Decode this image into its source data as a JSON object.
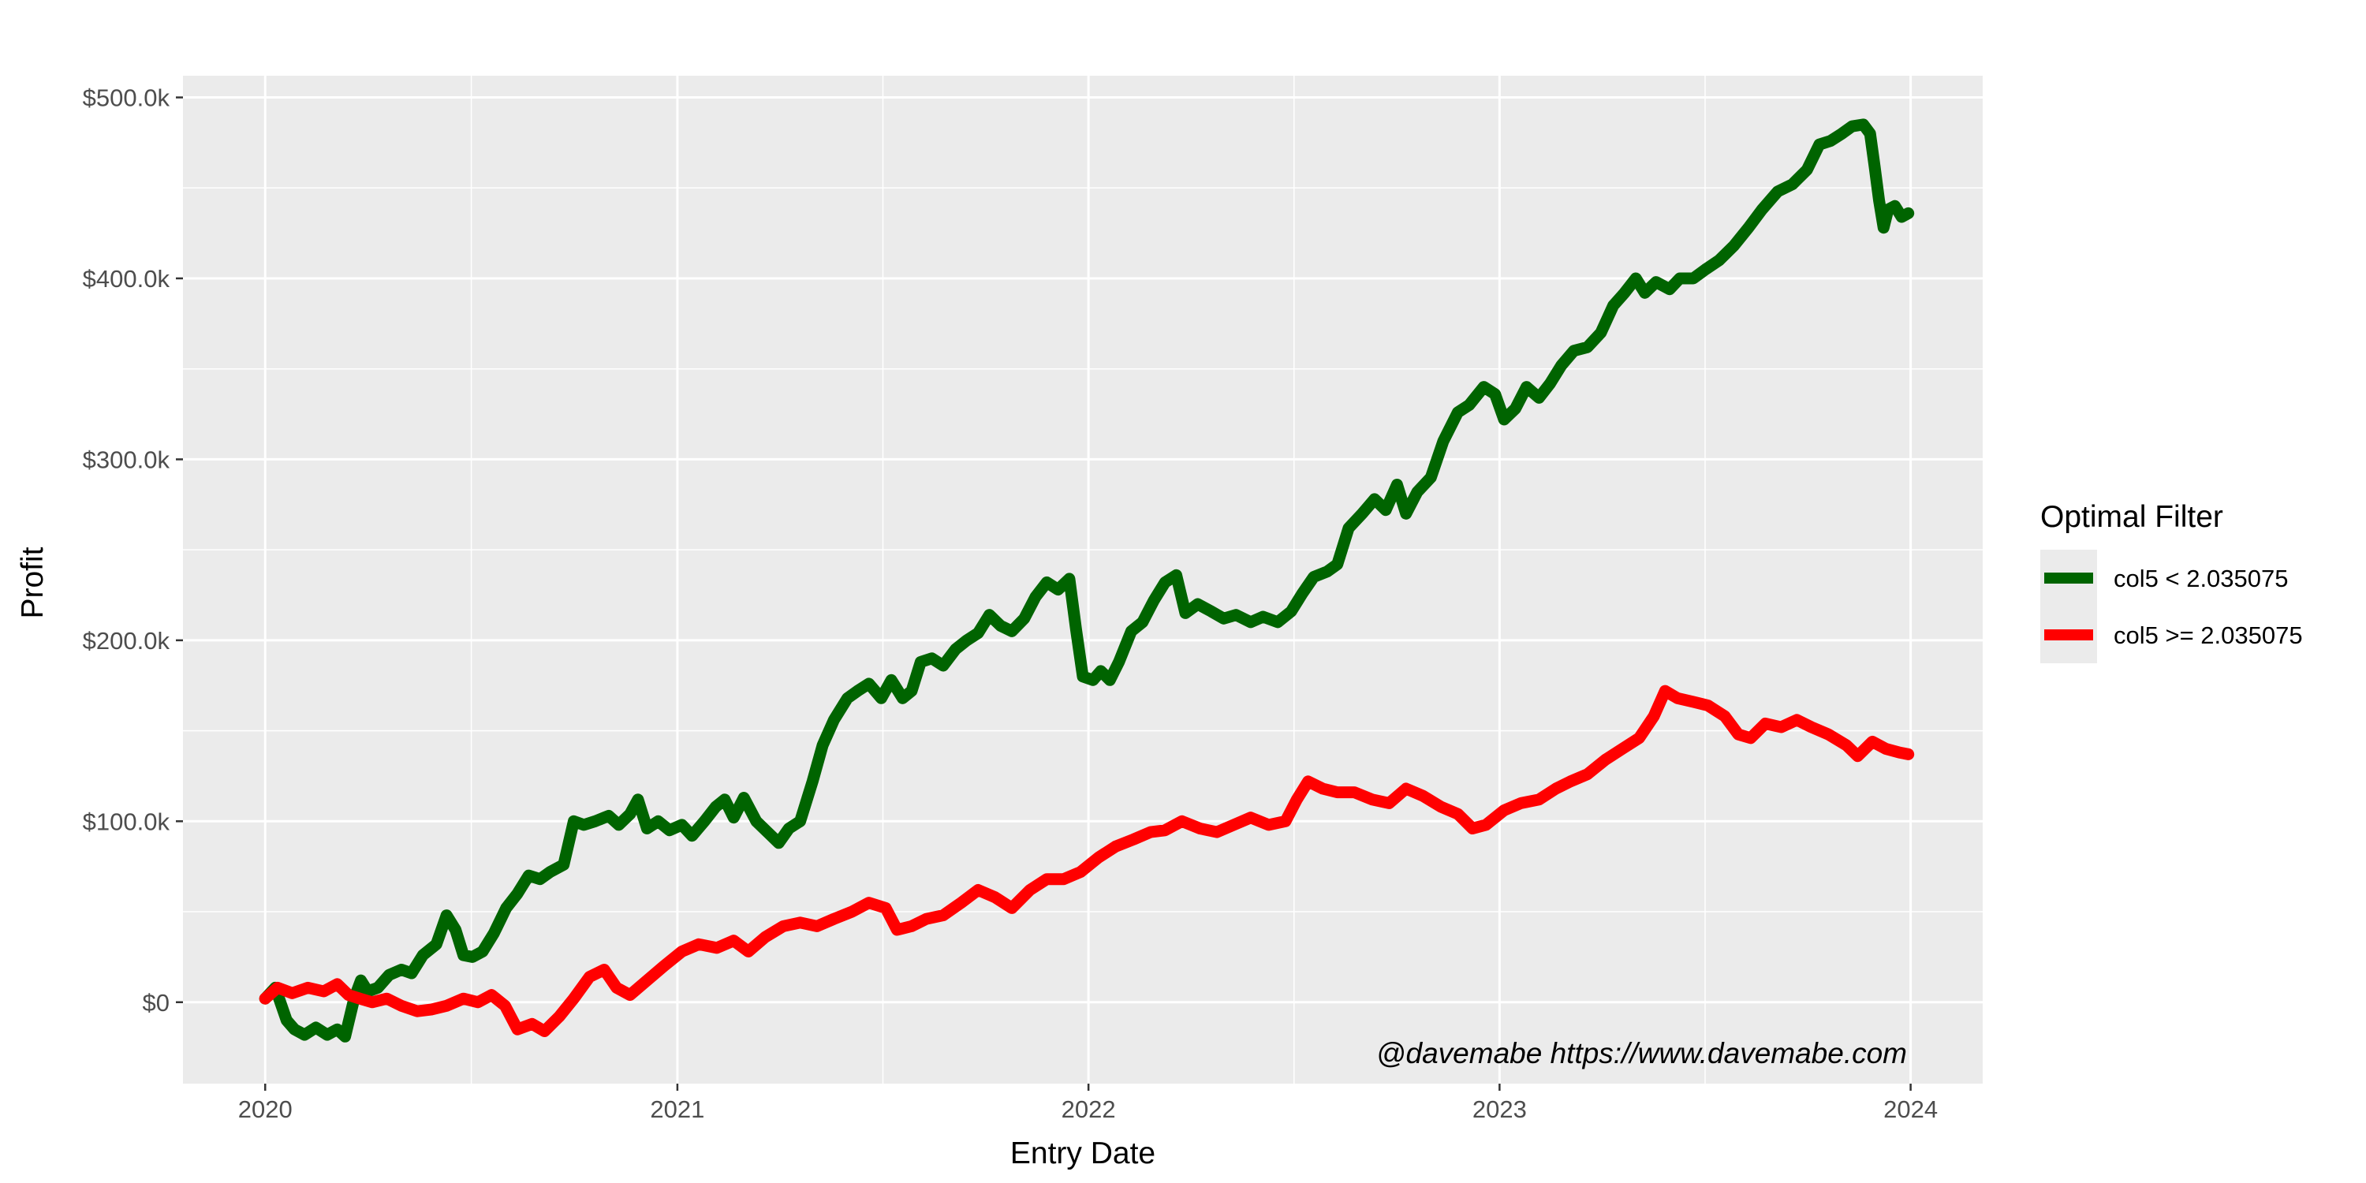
{
  "chart_data": {
    "type": "line",
    "xlabel": "Entry Date",
    "ylabel": "Profit",
    "xlim": [
      "2019-10-20",
      "2024-03-05"
    ],
    "ylim": [
      -45000,
      512000
    ],
    "x_ticks": [
      {
        "date": "2020-01-01",
        "label": "2020"
      },
      {
        "date": "2021-01-01",
        "label": "2021"
      },
      {
        "date": "2022-01-01",
        "label": "2022"
      },
      {
        "date": "2023-01-01",
        "label": "2023"
      },
      {
        "date": "2024-01-01",
        "label": "2024"
      }
    ],
    "y_ticks": [
      {
        "value": 0,
        "label": "$0"
      },
      {
        "value": 100000,
        "label": "$100.0k"
      },
      {
        "value": 200000,
        "label": "$200.0k"
      },
      {
        "value": 300000,
        "label": "$300.0k"
      },
      {
        "value": 400000,
        "label": "$400.0k"
      },
      {
        "value": 500000,
        "label": "$500.0k"
      }
    ],
    "grid": true,
    "legend": {
      "title": "Optimal Filter",
      "position": "right"
    },
    "annotation": "@davemabe https://www.davemabe.com",
    "series": [
      {
        "name": "col5 < 2.035075",
        "color": "#006400",
        "points": [
          [
            "2020-01-01",
            2000
          ],
          [
            "2020-01-10",
            8000
          ],
          [
            "2020-01-20",
            -10000
          ],
          [
            "2020-01-27",
            -15000
          ],
          [
            "2020-02-05",
            -18000
          ],
          [
            "2020-02-15",
            -14000
          ],
          [
            "2020-02-25",
            -18000
          ],
          [
            "2020-03-05",
            -15000
          ],
          [
            "2020-03-12",
            -19000
          ],
          [
            "2020-03-20",
            2000
          ],
          [
            "2020-03-26",
            12000
          ],
          [
            "2020-04-01",
            6000
          ],
          [
            "2020-04-10",
            8000
          ],
          [
            "2020-04-20",
            15000
          ],
          [
            "2020-05-01",
            18000
          ],
          [
            "2020-05-10",
            16000
          ],
          [
            "2020-05-20",
            26000
          ],
          [
            "2020-06-01",
            32000
          ],
          [
            "2020-06-10",
            48000
          ],
          [
            "2020-06-18",
            40000
          ],
          [
            "2020-06-25",
            26000
          ],
          [
            "2020-07-03",
            25000
          ],
          [
            "2020-07-12",
            28000
          ],
          [
            "2020-07-22",
            38000
          ],
          [
            "2020-08-02",
            52000
          ],
          [
            "2020-08-12",
            60000
          ],
          [
            "2020-08-22",
            70000
          ],
          [
            "2020-09-01",
            68000
          ],
          [
            "2020-09-10",
            72000
          ],
          [
            "2020-09-22",
            76000
          ],
          [
            "2020-10-01",
            100000
          ],
          [
            "2020-10-10",
            98000
          ],
          [
            "2020-10-20",
            100000
          ],
          [
            "2020-11-01",
            103000
          ],
          [
            "2020-11-10",
            98000
          ],
          [
            "2020-11-20",
            104000
          ],
          [
            "2020-11-27",
            112000
          ],
          [
            "2020-12-05",
            96000
          ],
          [
            "2020-12-15",
            100000
          ],
          [
            "2020-12-25",
            95000
          ],
          [
            "2021-01-05",
            98000
          ],
          [
            "2021-01-14",
            92000
          ],
          [
            "2021-01-25",
            100000
          ],
          [
            "2021-02-04",
            108000
          ],
          [
            "2021-02-12",
            112000
          ],
          [
            "2021-02-20",
            102000
          ],
          [
            "2021-03-01",
            113000
          ],
          [
            "2021-03-12",
            100000
          ],
          [
            "2021-03-22",
            94000
          ],
          [
            "2021-04-01",
            88000
          ],
          [
            "2021-04-10",
            96000
          ],
          [
            "2021-04-20",
            100000
          ],
          [
            "2021-05-01",
            122000
          ],
          [
            "2021-05-10",
            142000
          ],
          [
            "2021-05-20",
            156000
          ],
          [
            "2021-06-01",
            168000
          ],
          [
            "2021-06-10",
            172000
          ],
          [
            "2021-06-20",
            176000
          ],
          [
            "2021-07-01",
            168000
          ],
          [
            "2021-07-10",
            178000
          ],
          [
            "2021-07-20",
            168000
          ],
          [
            "2021-07-28",
            172000
          ],
          [
            "2021-08-05",
            188000
          ],
          [
            "2021-08-15",
            190000
          ],
          [
            "2021-08-25",
            186000
          ],
          [
            "2021-09-05",
            195000
          ],
          [
            "2021-09-15",
            200000
          ],
          [
            "2021-09-25",
            204000
          ],
          [
            "2021-10-05",
            214000
          ],
          [
            "2021-10-15",
            208000
          ],
          [
            "2021-10-25",
            205000
          ],
          [
            "2021-11-05",
            212000
          ],
          [
            "2021-11-15",
            224000
          ],
          [
            "2021-11-25",
            232000
          ],
          [
            "2021-12-05",
            228000
          ],
          [
            "2021-12-15",
            234000
          ],
          [
            "2021-12-21",
            206000
          ],
          [
            "2021-12-27",
            180000
          ],
          [
            "2022-01-05",
            178000
          ],
          [
            "2022-01-12",
            183000
          ],
          [
            "2022-01-20",
            178000
          ],
          [
            "2022-01-28",
            188000
          ],
          [
            "2022-02-08",
            205000
          ],
          [
            "2022-02-18",
            210000
          ],
          [
            "2022-02-28",
            222000
          ],
          [
            "2022-03-10",
            232000
          ],
          [
            "2022-03-20",
            236000
          ],
          [
            "2022-03-28",
            215000
          ],
          [
            "2022-04-08",
            220000
          ],
          [
            "2022-04-20",
            216000
          ],
          [
            "2022-05-01",
            212000
          ],
          [
            "2022-05-12",
            214000
          ],
          [
            "2022-05-25",
            210000
          ],
          [
            "2022-06-05",
            213000
          ],
          [
            "2022-06-18",
            210000
          ],
          [
            "2022-06-30",
            216000
          ],
          [
            "2022-07-10",
            226000
          ],
          [
            "2022-07-20",
            235000
          ],
          [
            "2022-08-01",
            238000
          ],
          [
            "2022-08-10",
            242000
          ],
          [
            "2022-08-20",
            262000
          ],
          [
            "2022-09-01",
            270000
          ],
          [
            "2022-09-12",
            278000
          ],
          [
            "2022-09-22",
            272000
          ],
          [
            "2022-10-02",
            286000
          ],
          [
            "2022-10-10",
            270000
          ],
          [
            "2022-10-20",
            282000
          ],
          [
            "2022-11-01",
            290000
          ],
          [
            "2022-11-12",
            310000
          ],
          [
            "2022-11-25",
            326000
          ],
          [
            "2022-12-05",
            330000
          ],
          [
            "2022-12-18",
            340000
          ],
          [
            "2022-12-28",
            336000
          ],
          [
            "2023-01-05",
            322000
          ],
          [
            "2023-01-15",
            328000
          ],
          [
            "2023-01-25",
            340000
          ],
          [
            "2023-02-05",
            334000
          ],
          [
            "2023-02-15",
            342000
          ],
          [
            "2023-02-25",
            352000
          ],
          [
            "2023-03-08",
            360000
          ],
          [
            "2023-03-20",
            362000
          ],
          [
            "2023-04-01",
            370000
          ],
          [
            "2023-04-12",
            385000
          ],
          [
            "2023-04-22",
            392000
          ],
          [
            "2023-05-02",
            400000
          ],
          [
            "2023-05-10",
            392000
          ],
          [
            "2023-05-20",
            398000
          ],
          [
            "2023-06-01",
            394000
          ],
          [
            "2023-06-10",
            400000
          ],
          [
            "2023-06-22",
            400000
          ],
          [
            "2023-07-03",
            405000
          ],
          [
            "2023-07-15",
            410000
          ],
          [
            "2023-07-28",
            418000
          ],
          [
            "2023-08-10",
            428000
          ],
          [
            "2023-08-22",
            438000
          ],
          [
            "2023-09-05",
            448000
          ],
          [
            "2023-09-18",
            452000
          ],
          [
            "2023-10-01",
            460000
          ],
          [
            "2023-10-12",
            474000
          ],
          [
            "2023-10-22",
            476000
          ],
          [
            "2023-11-01",
            480000
          ],
          [
            "2023-11-10",
            484000
          ],
          [
            "2023-11-20",
            485000
          ],
          [
            "2023-11-26",
            480000
          ],
          [
            "2023-11-30",
            462000
          ],
          [
            "2023-12-04",
            443000
          ],
          [
            "2023-12-08",
            428000
          ],
          [
            "2023-12-12",
            438000
          ],
          [
            "2023-12-18",
            440000
          ],
          [
            "2023-12-24",
            434000
          ],
          [
            "2023-12-30",
            436000
          ]
        ]
      },
      {
        "name": "col5 >= 2.035075",
        "color": "#ff0000",
        "points": [
          [
            "2020-01-01",
            2000
          ],
          [
            "2020-01-12",
            8000
          ],
          [
            "2020-01-25",
            5000
          ],
          [
            "2020-02-08",
            8000
          ],
          [
            "2020-02-22",
            6000
          ],
          [
            "2020-03-05",
            10000
          ],
          [
            "2020-03-15",
            4000
          ],
          [
            "2020-03-25",
            2000
          ],
          [
            "2020-04-05",
            0
          ],
          [
            "2020-04-18",
            2000
          ],
          [
            "2020-05-01",
            -2000
          ],
          [
            "2020-05-15",
            -5000
          ],
          [
            "2020-05-28",
            -4000
          ],
          [
            "2020-06-10",
            -2000
          ],
          [
            "2020-06-25",
            2000
          ],
          [
            "2020-07-08",
            0
          ],
          [
            "2020-07-20",
            4000
          ],
          [
            "2020-08-01",
            -2000
          ],
          [
            "2020-08-12",
            -15000
          ],
          [
            "2020-08-25",
            -12000
          ],
          [
            "2020-09-05",
            -16000
          ],
          [
            "2020-09-18",
            -8000
          ],
          [
            "2020-10-01",
            2000
          ],
          [
            "2020-10-15",
            14000
          ],
          [
            "2020-10-28",
            18000
          ],
          [
            "2020-11-08",
            8000
          ],
          [
            "2020-11-20",
            4000
          ],
          [
            "2020-12-05",
            12000
          ],
          [
            "2020-12-20",
            20000
          ],
          [
            "2021-01-05",
            28000
          ],
          [
            "2021-01-20",
            32000
          ],
          [
            "2021-02-05",
            30000
          ],
          [
            "2021-02-20",
            34000
          ],
          [
            "2021-03-05",
            28000
          ],
          [
            "2021-03-20",
            36000
          ],
          [
            "2021-04-05",
            42000
          ],
          [
            "2021-04-20",
            44000
          ],
          [
            "2021-05-05",
            42000
          ],
          [
            "2021-05-20",
            46000
          ],
          [
            "2021-06-05",
            50000
          ],
          [
            "2021-06-20",
            55000
          ],
          [
            "2021-07-05",
            52000
          ],
          [
            "2021-07-15",
            40000
          ],
          [
            "2021-07-28",
            42000
          ],
          [
            "2021-08-10",
            46000
          ],
          [
            "2021-08-25",
            48000
          ],
          [
            "2021-09-10",
            55000
          ],
          [
            "2021-09-25",
            62000
          ],
          [
            "2021-10-10",
            58000
          ],
          [
            "2021-10-25",
            52000
          ],
          [
            "2021-11-10",
            62000
          ],
          [
            "2021-11-25",
            68000
          ],
          [
            "2021-12-10",
            68000
          ],
          [
            "2021-12-25",
            72000
          ],
          [
            "2022-01-10",
            80000
          ],
          [
            "2022-01-25",
            86000
          ],
          [
            "2022-02-10",
            90000
          ],
          [
            "2022-02-25",
            94000
          ],
          [
            "2022-03-10",
            95000
          ],
          [
            "2022-03-25",
            100000
          ],
          [
            "2022-04-10",
            96000
          ],
          [
            "2022-04-25",
            94000
          ],
          [
            "2022-05-10",
            98000
          ],
          [
            "2022-05-25",
            102000
          ],
          [
            "2022-06-10",
            98000
          ],
          [
            "2022-06-25",
            100000
          ],
          [
            "2022-07-05",
            112000
          ],
          [
            "2022-07-15",
            122000
          ],
          [
            "2022-07-28",
            118000
          ],
          [
            "2022-08-10",
            116000
          ],
          [
            "2022-08-25",
            116000
          ],
          [
            "2022-09-10",
            112000
          ],
          [
            "2022-09-25",
            110000
          ],
          [
            "2022-10-10",
            118000
          ],
          [
            "2022-10-25",
            114000
          ],
          [
            "2022-11-10",
            108000
          ],
          [
            "2022-11-25",
            104000
          ],
          [
            "2022-12-08",
            96000
          ],
          [
            "2022-12-20",
            98000
          ],
          [
            "2023-01-05",
            106000
          ],
          [
            "2023-01-20",
            110000
          ],
          [
            "2023-02-05",
            112000
          ],
          [
            "2023-02-20",
            118000
          ],
          [
            "2023-03-05",
            122000
          ],
          [
            "2023-03-20",
            126000
          ],
          [
            "2023-04-05",
            134000
          ],
          [
            "2023-04-20",
            140000
          ],
          [
            "2023-05-05",
            146000
          ],
          [
            "2023-05-18",
            158000
          ],
          [
            "2023-05-28",
            172000
          ],
          [
            "2023-06-08",
            168000
          ],
          [
            "2023-06-22",
            166000
          ],
          [
            "2023-07-05",
            164000
          ],
          [
            "2023-07-20",
            158000
          ],
          [
            "2023-08-01",
            148000
          ],
          [
            "2023-08-12",
            146000
          ],
          [
            "2023-08-25",
            154000
          ],
          [
            "2023-09-08",
            152000
          ],
          [
            "2023-09-22",
            156000
          ],
          [
            "2023-10-05",
            152000
          ],
          [
            "2023-10-20",
            148000
          ],
          [
            "2023-11-05",
            142000
          ],
          [
            "2023-11-15",
            136000
          ],
          [
            "2023-11-28",
            144000
          ],
          [
            "2023-12-10",
            140000
          ],
          [
            "2023-12-22",
            138000
          ],
          [
            "2023-12-30",
            137000
          ]
        ]
      }
    ]
  }
}
